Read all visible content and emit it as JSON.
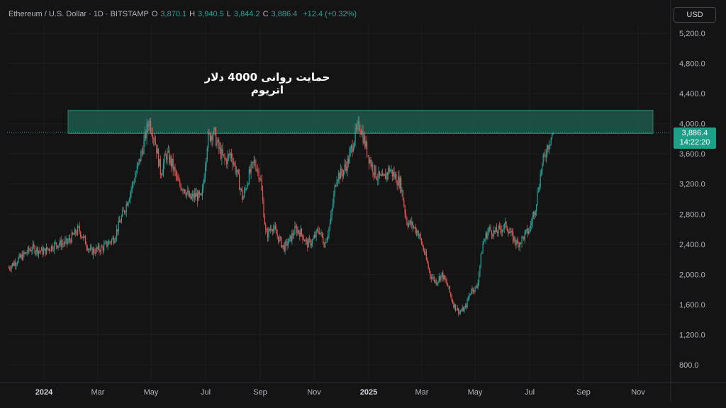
{
  "header": {
    "symbol": "Ethereum / U.S. Dollar · 1D · BITSTAMP",
    "open_label": "O",
    "open": "3,870.1",
    "high_label": "H",
    "high": "3,940.5",
    "low_label": "L",
    "low": "3,844.2",
    "close_label": "C",
    "close": "3,886.4",
    "change": "+12.4 (+0.32%)"
  },
  "currency_button": "USD",
  "price_tag": {
    "price": "3,886.4",
    "countdown": "14:22:20"
  },
  "annotation": "حمایت روانی 4000 دلار اتریوم",
  "colors": {
    "up": "#26a69a",
    "down": "#ef5350",
    "zone": "#1f5c4f",
    "grid": "#1e1e1e",
    "axis_text": "#b2b5be",
    "price_tag": "#1e9f87"
  },
  "chart_data": {
    "type": "candlestick",
    "y_axis_ticks": [
      "5,200.0",
      "4,800.0",
      "4,400.0",
      "4,000.0",
      "3,600.0",
      "3,200.0",
      "2,800.0",
      "2,400.0",
      "2,000.0",
      "1,600.0",
      "1,200.0",
      "800.0"
    ],
    "y_tick_values": [
      5200,
      4800,
      4400,
      4000,
      3600,
      3200,
      2800,
      2400,
      2000,
      1600,
      1200,
      800
    ],
    "x_axis_ticks": [
      "2024",
      "Mar",
      "May",
      "Jul",
      "Sep",
      "Nov",
      "2025",
      "Mar",
      "May",
      "Jul",
      "Sep",
      "Nov"
    ],
    "x_axis_bold": [
      "2024",
      "2025"
    ],
    "ylim": [
      600,
      5350
    ],
    "current_price": 3886.4,
    "resistance_zone": [
      3870,
      4180
    ],
    "price_path_knots": [
      [
        0,
        2090
      ],
      [
        2,
        2220
      ],
      [
        4,
        2350
      ],
      [
        6,
        2300
      ],
      [
        8,
        2400
      ],
      [
        10,
        2420
      ],
      [
        12,
        2600
      ],
      [
        14,
        2300
      ],
      [
        16,
        2350
      ],
      [
        18,
        2480
      ],
      [
        20,
        2900
      ],
      [
        22,
        3400
      ],
      [
        23,
        3700
      ],
      [
        24,
        4050
      ],
      [
        25,
        3800
      ],
      [
        26,
        3350
      ],
      [
        27,
        3600
      ],
      [
        28,
        3450
      ],
      [
        29,
        3200
      ],
      [
        30,
        3150
      ],
      [
        31,
        3000
      ],
      [
        32,
        3050
      ],
      [
        33,
        3000
      ],
      [
        34,
        3800
      ],
      [
        35,
        3900
      ],
      [
        36,
        3650
      ],
      [
        37,
        3500
      ],
      [
        38,
        3600
      ],
      [
        39,
        3350
      ],
      [
        40,
        3000
      ],
      [
        41,
        3300
      ],
      [
        42,
        3500
      ],
      [
        43,
        3300
      ],
      [
        44,
        2500
      ],
      [
        45,
        2650
      ],
      [
        46,
        2500
      ],
      [
        47,
        2350
      ],
      [
        48,
        2450
      ],
      [
        49,
        2600
      ],
      [
        50,
        2550
      ],
      [
        51,
        2400
      ],
      [
        52,
        2450
      ],
      [
        53,
        2600
      ],
      [
        54,
        2400
      ],
      [
        55,
        2700
      ],
      [
        56,
        3300
      ],
      [
        57,
        3350
      ],
      [
        58,
        3500
      ],
      [
        59,
        3800
      ],
      [
        60,
        4000
      ],
      [
        61,
        3700
      ],
      [
        62,
        3450
      ],
      [
        63,
        3300
      ],
      [
        64,
        3250
      ],
      [
        65,
        3400
      ],
      [
        66,
        3300
      ],
      [
        67,
        3200
      ],
      [
        68,
        2700
      ],
      [
        69,
        2650
      ],
      [
        70,
        2550
      ],
      [
        71,
        2300
      ],
      [
        72,
        2000
      ],
      [
        73,
        1900
      ],
      [
        74,
        2000
      ],
      [
        75,
        1850
      ],
      [
        76,
        1600
      ],
      [
        77,
        1500
      ],
      [
        78,
        1550
      ],
      [
        79,
        1800
      ],
      [
        80,
        1820
      ],
      [
        81,
        2400
      ],
      [
        82,
        2600
      ],
      [
        83,
        2550
      ],
      [
        84,
        2600
      ],
      [
        85,
        2650
      ],
      [
        86,
        2500
      ],
      [
        87,
        2400
      ],
      [
        88,
        2500
      ],
      [
        89,
        2600
      ],
      [
        90,
        2900
      ],
      [
        91,
        3400
      ],
      [
        92,
        3700
      ],
      [
        93,
        3886
      ]
    ]
  }
}
